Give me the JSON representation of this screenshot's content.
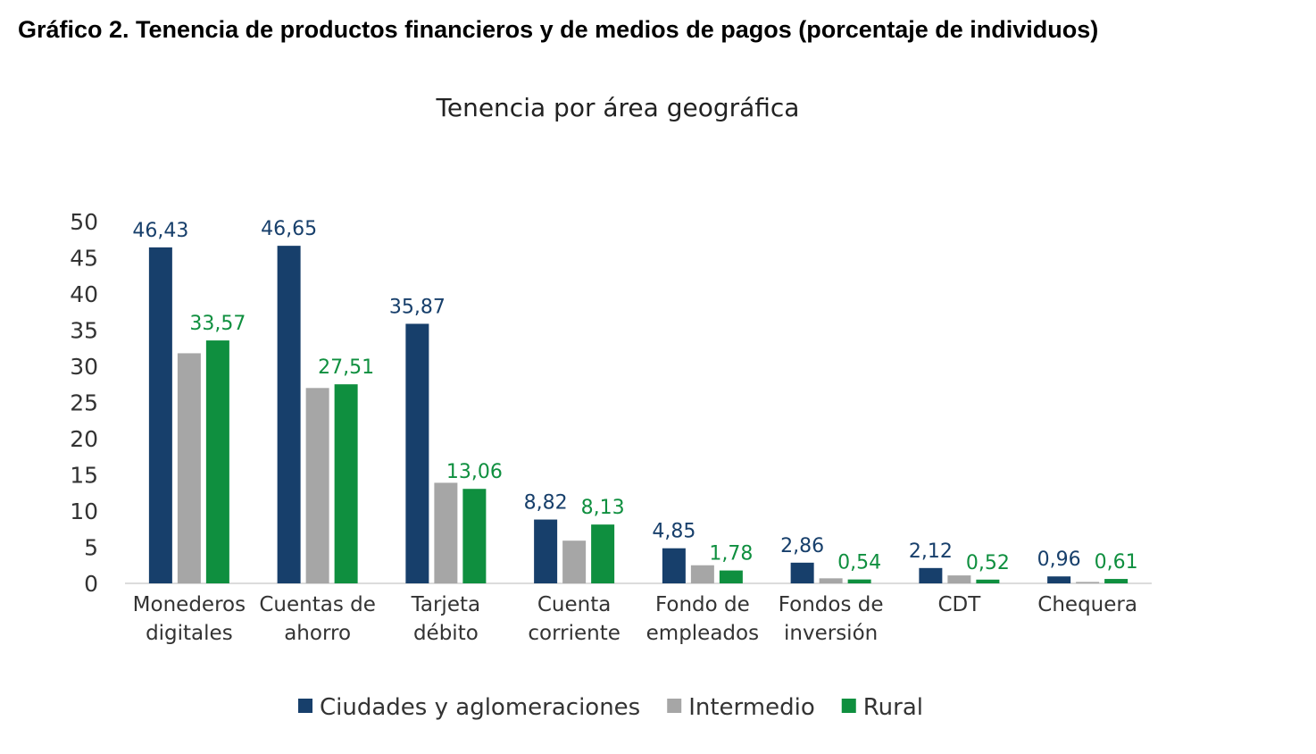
{
  "heading": "Gráfico 2. Tenencia de productos financieros y de medios de pagos (porcentaje de individuos)",
  "chart_data": {
    "type": "bar",
    "title": "Tenencia por área geográfica",
    "xlabel": "",
    "ylabel": "",
    "ylim": [
      0,
      50
    ],
    "yticks": [
      0,
      5,
      10,
      15,
      20,
      25,
      30,
      35,
      40,
      45,
      50
    ],
    "grid": false,
    "legend_position": "bottom",
    "categories": [
      [
        "Monederos",
        "digitales"
      ],
      [
        "Cuentas de",
        "ahorro"
      ],
      [
        "Tarjeta",
        "débito"
      ],
      [
        "Cuenta",
        "corriente"
      ],
      [
        "Fondo de",
        "empleados"
      ],
      [
        "Fondos de",
        "inversión"
      ],
      [
        "CDT"
      ],
      [
        "Chequera"
      ]
    ],
    "series": [
      {
        "name": "Ciudades y aglomeraciones",
        "color": "#173f6b",
        "labeled": true,
        "values": [
          46.43,
          46.65,
          35.87,
          8.82,
          4.85,
          2.86,
          2.12,
          0.96
        ],
        "labels": [
          "46,43",
          "46,65",
          "35,87",
          "8,82",
          "4,85",
          "2,86",
          "2,12",
          "0,96"
        ]
      },
      {
        "name": "Intermedio",
        "color": "#a6a6a6",
        "labeled": false,
        "values": [
          31.8,
          27.0,
          13.9,
          5.9,
          2.5,
          0.7,
          1.1,
          0.2
        ],
        "labels": []
      },
      {
        "name": "Rural",
        "color": "#0f8f3f",
        "labeled": true,
        "values": [
          33.57,
          27.51,
          13.06,
          8.13,
          1.78,
          0.54,
          0.52,
          0.61
        ],
        "labels": [
          "33,57",
          "27,51",
          "13,06",
          "8,13",
          "1,78",
          "0,54",
          "0,52",
          "0,61"
        ]
      }
    ]
  }
}
